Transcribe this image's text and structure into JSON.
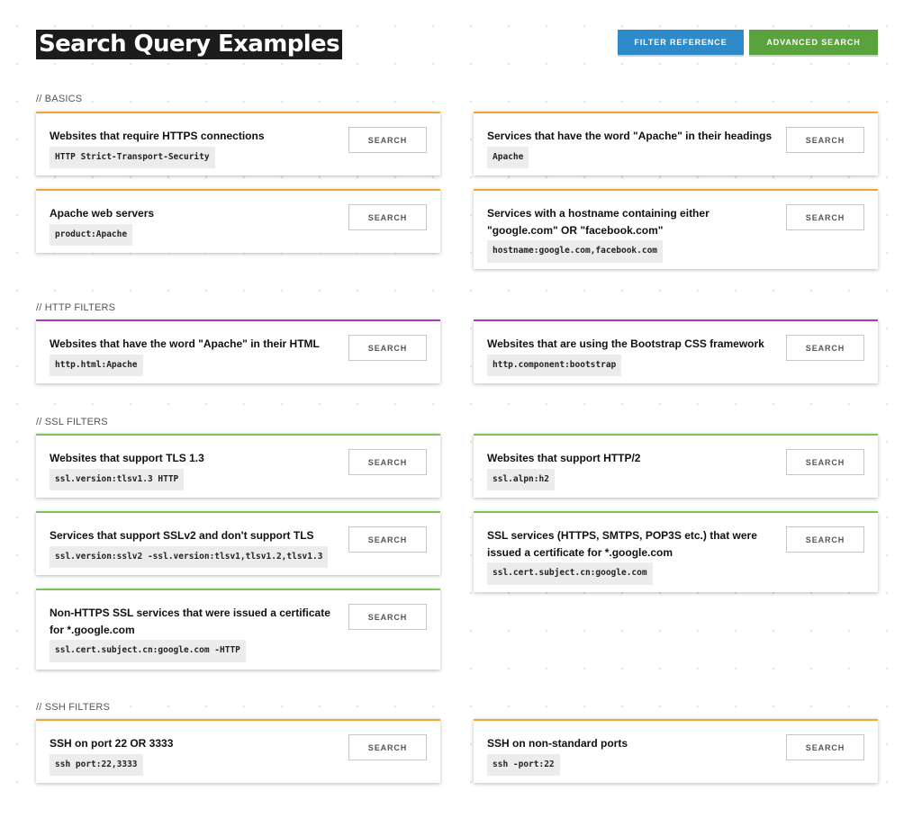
{
  "header": {
    "title": "Search Query Examples",
    "filter_reference_label": "FILTER REFERENCE",
    "advanced_search_label": "ADVANCED SEARCH"
  },
  "colors": {
    "basics_accent": "#f2a33a",
    "http_accent": "#a43fb8",
    "ssl_accent": "#7fc05a",
    "ssh_accent": "#f2a33a",
    "filter_button": "#2e8ac8",
    "advanced_button": "#5aa23e"
  },
  "sections": {
    "basics": {
      "heading": "// BASICS",
      "cards": [
        {
          "desc": "Websites that require HTTPS connections",
          "query": "HTTP Strict-Transport-Security",
          "button": "SEARCH"
        },
        {
          "desc": "Services that have the word \"Apache\" in their headings",
          "query": "Apache",
          "button": "SEARCH"
        },
        {
          "desc": "Apache web servers",
          "query": "product:Apache",
          "button": "SEARCH"
        },
        {
          "desc": "Services with a hostname containing either \"google.com\" OR \"facebook.com\"",
          "query": "hostname:google.com,facebook.com",
          "button": "SEARCH"
        }
      ]
    },
    "http": {
      "heading": "// HTTP FILTERS",
      "cards": [
        {
          "desc": "Websites that have the word \"Apache\" in their HTML",
          "query": "http.html:Apache",
          "button": "SEARCH"
        },
        {
          "desc": "Websites that are using the Bootstrap CSS framework",
          "query": "http.component:bootstrap",
          "button": "SEARCH"
        }
      ]
    },
    "ssl": {
      "heading": "// SSL FILTERS",
      "cards": [
        {
          "desc": "Websites that support TLS 1.3",
          "query": "ssl.version:tlsv1.3 HTTP",
          "button": "SEARCH"
        },
        {
          "desc": "Websites that support HTTP/2",
          "query": "ssl.alpn:h2",
          "button": "SEARCH"
        },
        {
          "desc": "Services that support SSLv2 and don't support TLS",
          "query": "ssl.version:sslv2 -ssl.version:tlsv1,tlsv1.2,tlsv1.3",
          "button": "SEARCH"
        },
        {
          "desc": "SSL services (HTTPS, SMTPS, POP3S etc.) that were issued a certificate for *.google.com",
          "query": "ssl.cert.subject.cn:google.com",
          "button": "SEARCH"
        },
        {
          "desc": "Non-HTTPS SSL services that were issued a certificate for *.google.com",
          "query": "ssl.cert.subject.cn:google.com -HTTP",
          "button": "SEARCH"
        }
      ]
    },
    "ssh": {
      "heading": "// SSH FILTERS",
      "cards": [
        {
          "desc": "SSH on port 22 OR 3333",
          "query": "ssh port:22,3333",
          "button": "SEARCH"
        },
        {
          "desc": "SSH on non-standard ports",
          "query": "ssh -port:22",
          "button": "SEARCH"
        }
      ]
    }
  }
}
